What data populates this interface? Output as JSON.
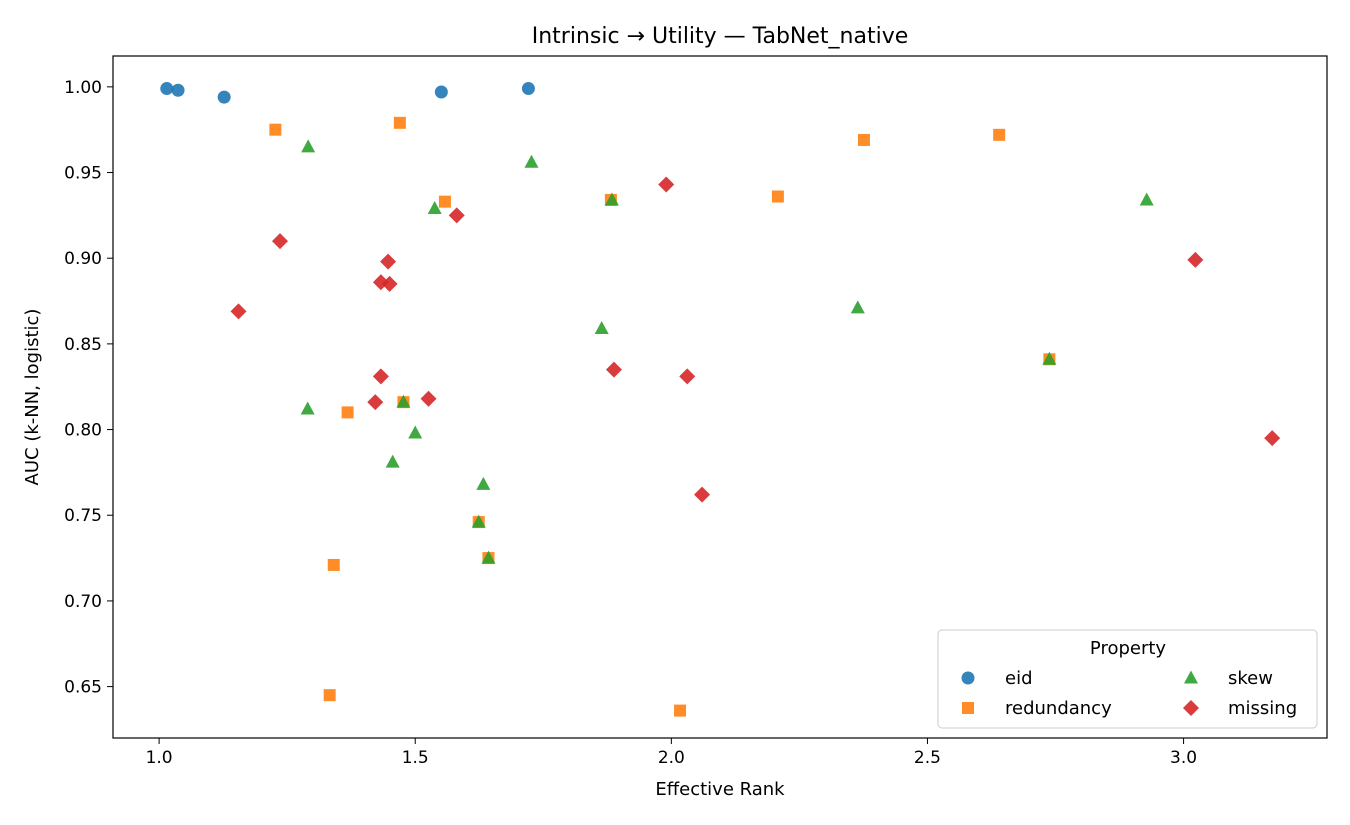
{
  "chart_data": {
    "type": "scatter",
    "title": "Intrinsic → Utility — TabNet_native",
    "xlabel": "Effective Rank",
    "ylabel": "AUC (k-NN, logistic)",
    "xlim": [
      0.91,
      3.28
    ],
    "ylim": [
      0.62,
      1.018
    ],
    "xticks": [
      1.0,
      1.5,
      2.0,
      2.5,
      3.0
    ],
    "xtick_labels": [
      "1.0",
      "1.5",
      "2.0",
      "2.5",
      "3.0"
    ],
    "yticks": [
      0.65,
      0.7,
      0.75,
      0.8,
      0.85,
      0.9,
      0.95,
      1.0
    ],
    "ytick_labels": [
      "0.65",
      "0.70",
      "0.75",
      "0.80",
      "0.85",
      "0.90",
      "0.95",
      "1.00"
    ],
    "grid": false,
    "legend": {
      "title": "Property",
      "placement": "bottom-right",
      "columns": 2
    },
    "series": [
      {
        "name": "eid",
        "marker": "circle",
        "color": "#1f77b4",
        "points": [
          [
            1.015,
            0.999
          ],
          [
            1.037,
            0.998
          ],
          [
            1.127,
            0.994
          ],
          [
            1.551,
            0.997
          ],
          [
            1.721,
            0.999
          ]
        ]
      },
      {
        "name": "redundancy",
        "marker": "square",
        "color": "#ff7f0e",
        "points": [
          [
            1.227,
            0.975
          ],
          [
            1.47,
            0.979
          ],
          [
            1.558,
            0.933
          ],
          [
            1.882,
            0.934
          ],
          [
            2.208,
            0.936
          ],
          [
            2.376,
            0.969
          ],
          [
            2.64,
            0.972
          ],
          [
            1.368,
            0.81
          ],
          [
            1.477,
            0.816
          ],
          [
            1.341,
            0.721
          ],
          [
            1.624,
            0.746
          ],
          [
            1.643,
            0.725
          ],
          [
            2.738,
            0.841
          ],
          [
            1.333,
            0.645
          ],
          [
            2.017,
            0.636
          ]
        ]
      },
      {
        "name": "skew",
        "marker": "triangle",
        "color": "#2ca02c",
        "points": [
          [
            1.291,
            0.965
          ],
          [
            1.538,
            0.929
          ],
          [
            1.727,
            0.956
          ],
          [
            1.884,
            0.934
          ],
          [
            2.928,
            0.934
          ],
          [
            1.864,
            0.859
          ],
          [
            2.364,
            0.871
          ],
          [
            2.738,
            0.841
          ],
          [
            1.29,
            0.812
          ],
          [
            1.477,
            0.816
          ],
          [
            1.5,
            0.798
          ],
          [
            1.456,
            0.781
          ],
          [
            1.633,
            0.768
          ],
          [
            1.624,
            0.746
          ],
          [
            1.643,
            0.725
          ]
        ]
      },
      {
        "name": "missing",
        "marker": "diamond",
        "color": "#d62728",
        "points": [
          [
            1.236,
            0.91
          ],
          [
            1.155,
            0.869
          ],
          [
            1.447,
            0.898
          ],
          [
            1.433,
            0.886
          ],
          [
            1.45,
            0.885
          ],
          [
            1.581,
            0.925
          ],
          [
            1.99,
            0.943
          ],
          [
            3.023,
            0.899
          ],
          [
            1.433,
            0.831
          ],
          [
            1.422,
            0.816
          ],
          [
            1.526,
            0.818
          ],
          [
            1.888,
            0.835
          ],
          [
            2.031,
            0.831
          ],
          [
            2.06,
            0.762
          ],
          [
            3.173,
            0.795
          ]
        ]
      }
    ]
  }
}
